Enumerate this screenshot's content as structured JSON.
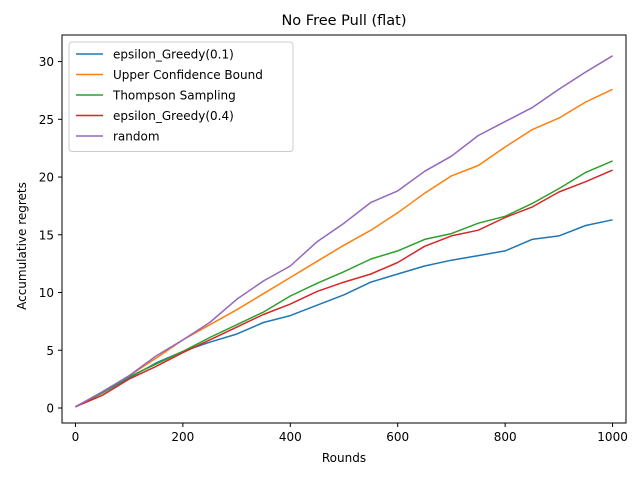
{
  "chart_data": {
    "type": "line",
    "title": "No Free Pull (flat)",
    "xlabel": "Rounds",
    "ylabel": "Accumulative regrets",
    "xlim": [
      -25,
      1025
    ],
    "ylim": [
      -1.3,
      32.3
    ],
    "xticks": [
      0,
      200,
      400,
      600,
      800,
      1000
    ],
    "yticks": [
      0,
      5,
      10,
      15,
      20,
      25,
      30
    ],
    "xtick_labels": [
      "0",
      "200",
      "400",
      "600",
      "800",
      "1000"
    ],
    "ytick_labels": [
      "0",
      "5",
      "10",
      "15",
      "20",
      "25",
      "30"
    ],
    "grid": false,
    "legend_position": "top-left",
    "series": [
      {
        "name": "epsilon_Greedy(0.1)",
        "color": "#1f77b4",
        "x": [
          0,
          50,
          100,
          150,
          200,
          250,
          300,
          350,
          400,
          450,
          500,
          550,
          600,
          650,
          700,
          750,
          800,
          850,
          900,
          950,
          1000
        ],
        "values": [
          0.1,
          1.3,
          2.6,
          3.9,
          4.9,
          5.7,
          6.4,
          7.4,
          8.0,
          8.9,
          9.8,
          10.9,
          11.6,
          12.3,
          12.8,
          13.2,
          13.6,
          14.6,
          14.9,
          15.8,
          16.3
        ]
      },
      {
        "name": "Upper Confidence Bound",
        "color": "#ff7f0e",
        "x": [
          0,
          50,
          100,
          150,
          200,
          250,
          300,
          350,
          400,
          450,
          500,
          550,
          600,
          650,
          700,
          750,
          800,
          850,
          900,
          950,
          1000
        ],
        "values": [
          0.1,
          1.3,
          2.8,
          4.3,
          5.9,
          7.2,
          8.5,
          9.9,
          11.3,
          12.7,
          14.1,
          15.4,
          16.9,
          18.6,
          20.1,
          21.0,
          22.6,
          24.1,
          25.1,
          26.5,
          27.6
        ]
      },
      {
        "name": "Thompson Sampling",
        "color": "#2ca02c",
        "x": [
          0,
          50,
          100,
          150,
          200,
          250,
          300,
          350,
          400,
          450,
          500,
          550,
          600,
          650,
          700,
          750,
          800,
          850,
          900,
          950,
          1000
        ],
        "values": [
          0.1,
          1.3,
          2.7,
          3.8,
          4.9,
          6.1,
          7.2,
          8.3,
          9.7,
          10.8,
          11.8,
          12.9,
          13.6,
          14.6,
          15.1,
          16.0,
          16.6,
          17.7,
          19.0,
          20.4,
          21.4
        ]
      },
      {
        "name": "epsilon_Greedy(0.4)",
        "color": "#d62728",
        "x": [
          0,
          50,
          100,
          150,
          200,
          250,
          300,
          350,
          400,
          450,
          500,
          550,
          600,
          650,
          700,
          750,
          800,
          850,
          900,
          950,
          1000
        ],
        "values": [
          0.1,
          1.1,
          2.5,
          3.6,
          4.8,
          5.9,
          7.0,
          8.1,
          9.0,
          10.1,
          10.9,
          11.6,
          12.6,
          14.0,
          14.9,
          15.4,
          16.5,
          17.4,
          18.7,
          19.6,
          20.6
        ]
      },
      {
        "name": "random",
        "color": "#9467bd",
        "x": [
          0,
          50,
          100,
          150,
          200,
          250,
          300,
          350,
          400,
          450,
          500,
          550,
          600,
          650,
          700,
          750,
          800,
          850,
          900,
          950,
          1000
        ],
        "values": [
          0.1,
          1.4,
          2.8,
          4.5,
          5.9,
          7.4,
          9.4,
          11.0,
          12.3,
          14.4,
          16.0,
          17.8,
          18.8,
          20.5,
          21.8,
          23.6,
          24.8,
          26.0,
          27.6,
          29.1,
          30.5
        ]
      }
    ]
  }
}
